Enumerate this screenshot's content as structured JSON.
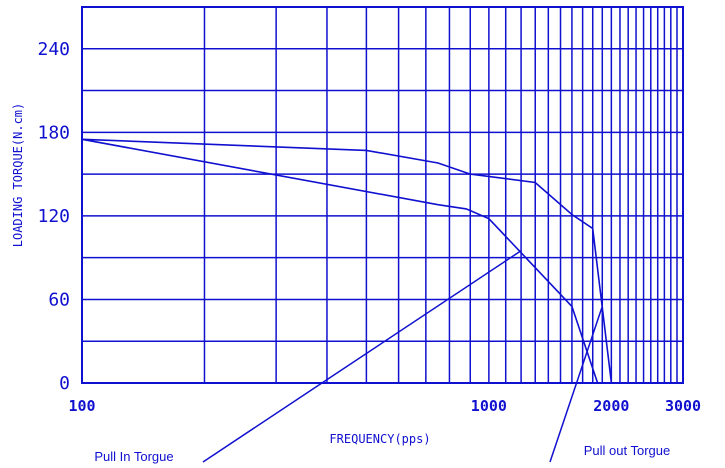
{
  "chart_data": {
    "type": "line",
    "title": "",
    "xlabel": "FREQUENCY(pps)",
    "ylabel": "LOADING TORQUE(N.cm)",
    "x_ticks": [
      {
        "value": 100,
        "label": "100"
      },
      {
        "value": 1000,
        "label": "1000"
      },
      {
        "value": 2000,
        "label": "2000"
      },
      {
        "value": 3000,
        "label": "3000"
      }
    ],
    "y_ticks": [
      {
        "value": 0,
        "label": "0"
      },
      {
        "value": 60,
        "label": "60"
      },
      {
        "value": 120,
        "label": "120"
      },
      {
        "value": 180,
        "label": "180"
      },
      {
        "value": 240,
        "label": "240"
      }
    ],
    "xlim": [
      100,
      3000
    ],
    "ylim": [
      0,
      270
    ],
    "x_scale": "log",
    "grid": true,
    "colors": {
      "line": "#1010d0",
      "grid": "#1010d0",
      "text": "#1010d0"
    },
    "series": [
      {
        "points": [
          [
            100,
            175
          ],
          [
            500,
            167
          ],
          [
            750,
            158
          ],
          [
            900,
            150
          ],
          [
            1300,
            144
          ],
          [
            1600,
            121
          ],
          [
            1800,
            111
          ],
          [
            2000,
            0
          ]
        ]
      },
      {
        "points": [
          [
            100,
            175
          ],
          [
            750,
            128
          ],
          [
            880,
            125
          ],
          [
            1000,
            118
          ],
          [
            1600,
            55
          ],
          [
            1850,
            0
          ]
        ]
      }
    ],
    "annotations": [
      {
        "text": "Pull In Torgue",
        "target": [
          1200,
          95
        ]
      },
      {
        "text": "Pull out Torgue",
        "target": [
          1900,
          55
        ]
      }
    ]
  }
}
